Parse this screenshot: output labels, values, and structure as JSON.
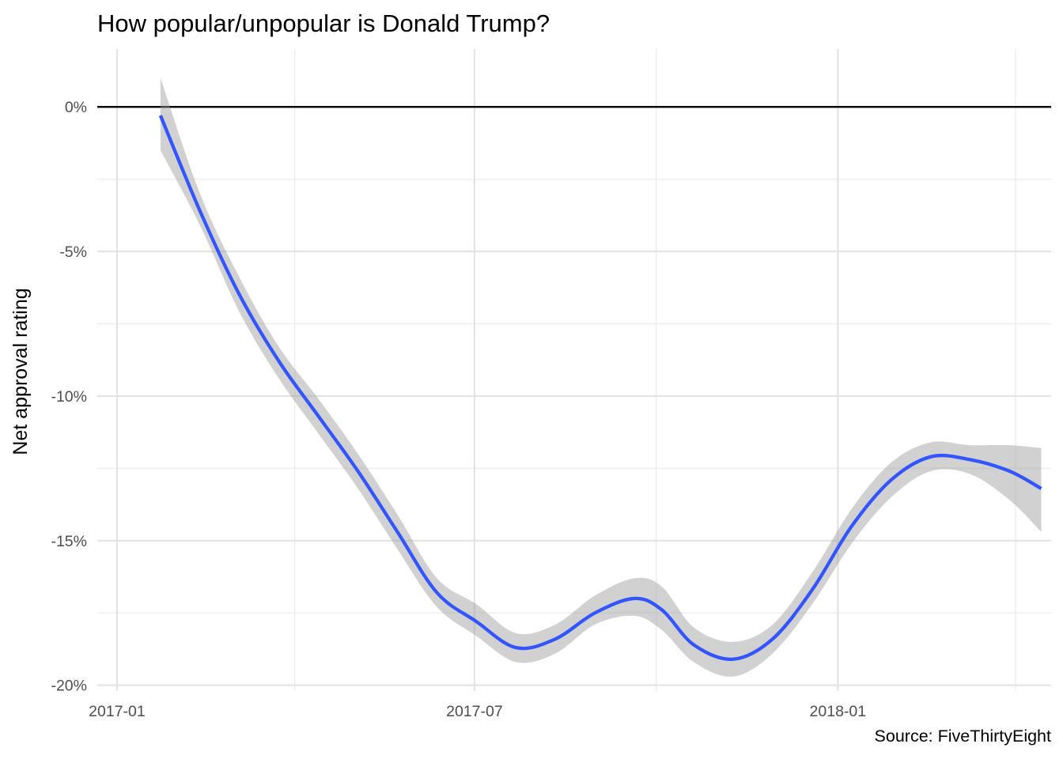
{
  "chart_data": {
    "type": "line",
    "title": "How popular/unpopular is Donald Trump?",
    "xlabel": "",
    "ylabel": "Net approval rating",
    "caption": "Source: FiveThirtyEight",
    "xlim": [
      "2016-12-22",
      "2018-04-19"
    ],
    "ylim": [
      -20.2,
      2.0
    ],
    "x_ticks": [
      "2017-01-01",
      "2017-07-01",
      "2018-01-01"
    ],
    "x_tick_labels": [
      "2017-01",
      "2017-07",
      "2018-01"
    ],
    "x_minor_ticks": [
      "2017-04-01",
      "2017-10-01",
      "2018-04-01"
    ],
    "y_ticks": [
      0,
      -5,
      -10,
      -15,
      -20
    ],
    "y_tick_labels": [
      "0%",
      "-5%",
      "-10%",
      "-15%",
      "-20%"
    ],
    "y_minor_ticks": [
      -2.5,
      -7.5,
      -12.5,
      -17.5
    ],
    "reference_line": 0,
    "grid": true,
    "series": [
      {
        "kind": "smooth",
        "color": "#3355ff",
        "x": [
          "2017-01-23",
          "2017-02-12",
          "2017-03-04",
          "2017-03-24",
          "2017-04-13",
          "2017-05-03",
          "2017-05-23",
          "2017-06-12",
          "2017-07-02",
          "2017-07-22",
          "2017-08-11",
          "2017-08-31",
          "2017-09-20",
          "2017-10-04",
          "2017-10-20",
          "2017-11-09",
          "2017-11-29",
          "2017-12-19",
          "2018-01-08",
          "2018-01-28",
          "2018-02-17",
          "2018-03-09",
          "2018-03-29",
          "2018-04-14"
        ],
        "y": [
          -0.3,
          -3.6,
          -6.5,
          -8.8,
          -10.7,
          -12.6,
          -14.7,
          -16.8,
          -17.8,
          -18.7,
          -18.4,
          -17.5,
          -17.0,
          -17.4,
          -18.6,
          -19.1,
          -18.4,
          -16.7,
          -14.5,
          -12.9,
          -12.1,
          -12.2,
          -12.6,
          -13.2
        ],
        "ci_lower": [
          -1.5,
          -4.1,
          -7.1,
          -9.4,
          -11.3,
          -13.2,
          -15.3,
          -17.3,
          -18.3,
          -19.2,
          -18.9,
          -17.9,
          -17.6,
          -18.1,
          -19.2,
          -19.7,
          -18.9,
          -17.2,
          -15.1,
          -13.5,
          -12.6,
          -12.7,
          -13.6,
          -14.7
        ],
        "ci_upper": [
          1.0,
          -3.0,
          -5.9,
          -8.3,
          -10.1,
          -12.0,
          -14.1,
          -16.3,
          -17.2,
          -18.2,
          -17.9,
          -16.9,
          -16.3,
          -16.6,
          -18.0,
          -18.5,
          -17.9,
          -16.1,
          -13.9,
          -12.3,
          -11.6,
          -11.7,
          -11.7,
          -11.8
        ]
      }
    ]
  }
}
